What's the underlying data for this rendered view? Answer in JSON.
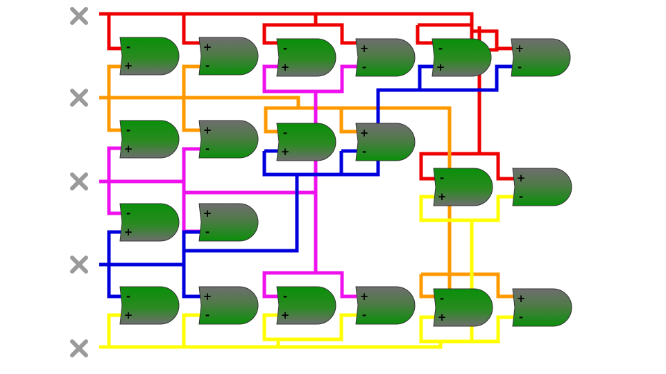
{
  "colors": {
    "red": "#ee0000",
    "orange": "#ff9900",
    "magenta": "#ee11ee",
    "blue": "#0000dd",
    "yellow": "#ffff00",
    "gate_green": "#0a8f0a",
    "gate_gray": "#6e6e6e",
    "x_mark": "#9a9a9a"
  },
  "signs": {
    "minus": "-",
    "plus": "+"
  },
  "inputs": [
    {
      "id": "input-1",
      "icon": "x-mark-icon"
    },
    {
      "id": "input-2",
      "icon": "x-mark-icon"
    },
    {
      "id": "input-3",
      "icon": "x-mark-icon"
    },
    {
      "id": "input-4",
      "icon": "x-mark-icon"
    },
    {
      "id": "input-5",
      "icon": "x-mark-icon"
    }
  ],
  "gates": [
    {
      "id": "g1",
      "top_sign": "-",
      "bottom_sign": "+",
      "shade": "green"
    },
    {
      "id": "g2",
      "top_sign": "+",
      "bottom_sign": "-",
      "shade": "gray"
    },
    {
      "id": "g3",
      "top_sign": "-",
      "bottom_sign": "+",
      "shade": "green"
    },
    {
      "id": "g4",
      "top_sign": "+",
      "bottom_sign": "-",
      "shade": "gray"
    },
    {
      "id": "g5",
      "top_sign": "-",
      "bottom_sign": "+",
      "shade": "green"
    },
    {
      "id": "g6",
      "top_sign": "+",
      "bottom_sign": "-",
      "shade": "gray"
    },
    {
      "id": "g7",
      "top_sign": "-",
      "bottom_sign": "+",
      "shade": "green"
    },
    {
      "id": "g8",
      "top_sign": "+",
      "bottom_sign": "-",
      "shade": "gray"
    },
    {
      "id": "g9",
      "top_sign": "-",
      "bottom_sign": "+",
      "shade": "green"
    },
    {
      "id": "g10",
      "top_sign": "+",
      "bottom_sign": "-",
      "shade": "gray"
    },
    {
      "id": "g11",
      "top_sign": "-",
      "bottom_sign": "+",
      "shade": "green"
    },
    {
      "id": "g12",
      "top_sign": "+",
      "bottom_sign": "-",
      "shade": "gray"
    },
    {
      "id": "g13",
      "top_sign": "-",
      "bottom_sign": "+",
      "shade": "green"
    },
    {
      "id": "g14",
      "top_sign": "+",
      "bottom_sign": "-",
      "shade": "gray"
    },
    {
      "id": "g15",
      "top_sign": "-",
      "bottom_sign": "+",
      "shade": "green"
    },
    {
      "id": "g16",
      "top_sign": "+",
      "bottom_sign": "-",
      "shade": "gray"
    },
    {
      "id": "g17",
      "top_sign": "-",
      "bottom_sign": "+",
      "shade": "green"
    },
    {
      "id": "g18",
      "top_sign": "+",
      "bottom_sign": "-",
      "shade": "gray"
    },
    {
      "id": "g19",
      "top_sign": "-",
      "bottom_sign": "+",
      "shade": "green"
    },
    {
      "id": "g20",
      "top_sign": "+",
      "bottom_sign": "-",
      "shade": "gray"
    }
  ],
  "wires": [
    {
      "id": "wire-red",
      "color": "red"
    },
    {
      "id": "wire-orange",
      "color": "orange"
    },
    {
      "id": "wire-magenta",
      "color": "magenta"
    },
    {
      "id": "wire-blue",
      "color": "blue"
    },
    {
      "id": "wire-yellow",
      "color": "yellow"
    }
  ]
}
